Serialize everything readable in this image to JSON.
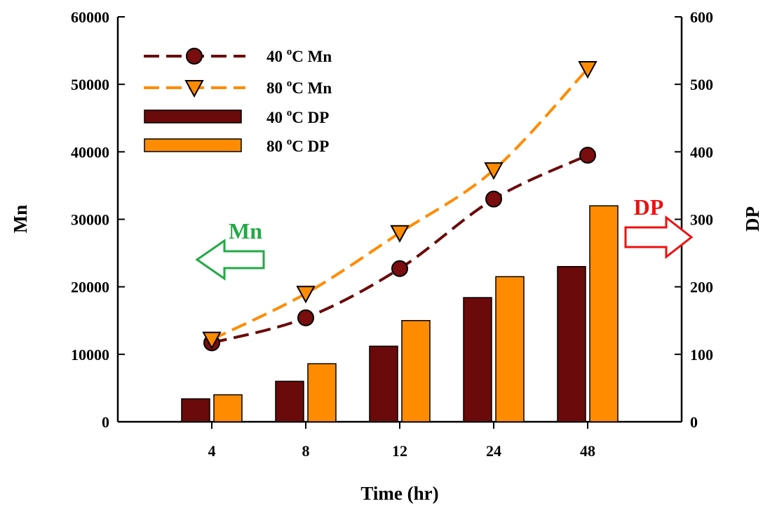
{
  "chart_data": {
    "type": "bar",
    "categories": [
      "4",
      "8",
      "12",
      "24",
      "48"
    ],
    "xlabel": "Time (hr)",
    "ylabel_left": "Mn",
    "ylabel_right": "DP",
    "ylim_left": [
      0,
      60000
    ],
    "ylim_right": [
      0,
      600
    ],
    "yticks_left": [
      "0",
      "10000",
      "20000",
      "30000",
      "40000",
      "50000",
      "60000"
    ],
    "yticks_right": [
      "0",
      "100",
      "200",
      "300",
      "400",
      "500",
      "600"
    ],
    "series": [
      {
        "name": "40 °C Mn",
        "kind": "line",
        "axis": "left",
        "marker": "circle",
        "color": "#6b0a0a",
        "values": [
          11700,
          15400,
          22700,
          33000,
          39500
        ]
      },
      {
        "name": "80 °C Mn",
        "kind": "line",
        "axis": "left",
        "marker": "triangle-down",
        "color": "#ff8c00",
        "values": [
          12200,
          19000,
          28000,
          37300,
          52300
        ]
      },
      {
        "name": "40 °C DP",
        "kind": "bar",
        "axis": "right",
        "color": "#6b0a0a",
        "values": [
          34,
          60,
          112,
          184,
          230
        ]
      },
      {
        "name": "80 °C DP",
        "kind": "bar",
        "axis": "right",
        "color": "#ff8c00",
        "values": [
          40,
          86,
          150,
          215,
          320
        ]
      }
    ],
    "legend": {
      "placement": "top-left",
      "entries": [
        {
          "prefix": "40 ",
          "sup": "o",
          "suffix": "C Mn"
        },
        {
          "prefix": "80 ",
          "sup": "o",
          "suffix": "C Mn"
        },
        {
          "prefix": "40 ",
          "sup": "o",
          "suffix": "C DP"
        },
        {
          "prefix": "80 ",
          "sup": "o",
          "suffix": "C DP"
        }
      ]
    },
    "annotations": {
      "left_arrow_label": "Mn",
      "left_arrow_color": "#22aa44",
      "right_arrow_label": "DP",
      "right_arrow_color": "#ee1111"
    }
  }
}
